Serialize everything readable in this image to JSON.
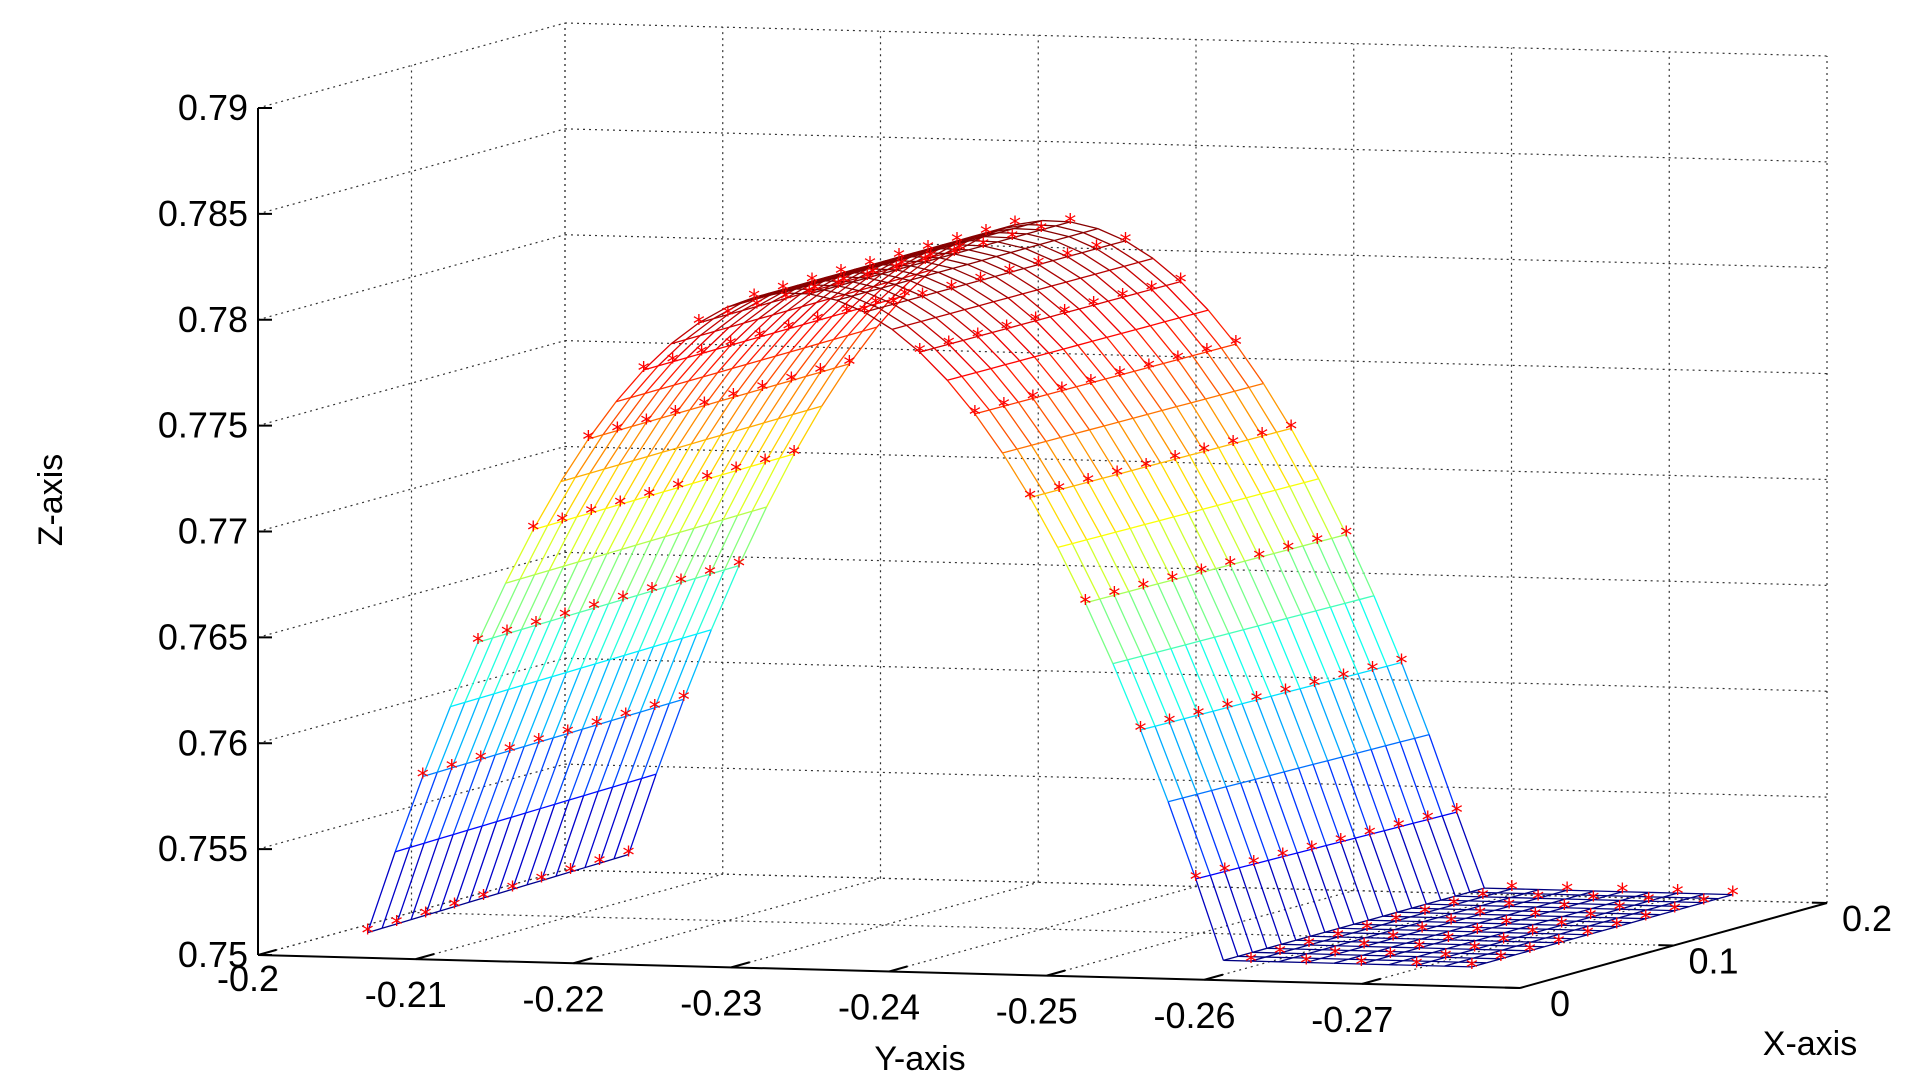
{
  "chart_data": {
    "type": "surface3d",
    "title": "",
    "xlabel": "X-axis",
    "ylabel": "Y-axis",
    "zlabel": "Z-axis",
    "xlim": [
      0,
      0.2
    ],
    "ylim": [
      -0.2,
      -0.28
    ],
    "zlim": [
      0.75,
      0.79
    ],
    "x_ticks": [
      "0",
      "0.1",
      "0.2"
    ],
    "y_ticks": [
      "-0.2",
      "-0.21",
      "-0.22",
      "-0.23",
      "-0.24",
      "-0.25",
      "-0.26",
      "-0.27"
    ],
    "z_ticks": [
      "0.75",
      "0.755",
      "0.76",
      "0.765",
      "0.77",
      "0.775",
      "0.78",
      "0.785",
      "0.79"
    ],
    "grid": true,
    "surface": {
      "style": "mesh",
      "colormap": "jet",
      "description_values": {
        "u_range_y": [
          -0.205,
          -0.275
        ],
        "v_range_x": [
          0.02,
          0.19
        ],
        "z_peak": 0.7815,
        "z_min": 0.7505
      }
    },
    "markers": {
      "symbol": "*",
      "color": "#ff0000"
    }
  }
}
